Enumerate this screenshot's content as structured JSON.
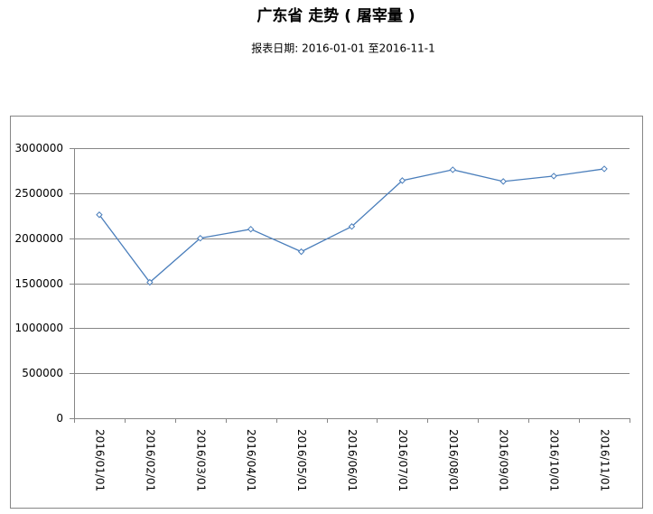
{
  "chart_data": {
    "type": "line",
    "title": "广东省 走势 ( 屠宰量 )",
    "subtitle": "报表日期: 2016-01-01 至2016-11-1",
    "categories": [
      "2016/01/01",
      "2016/02/01",
      "2016/03/01",
      "2016/04/01",
      "2016/05/01",
      "2016/06/01",
      "2016/07/01",
      "2016/08/01",
      "2016/09/01",
      "2016/10/01",
      "2016/11/01"
    ],
    "values": [
      2260000,
      1510000,
      2000000,
      2100000,
      1850000,
      2130000,
      2640000,
      2760000,
      2630000,
      2690000,
      2770000
    ],
    "color": "#4a7ebb",
    "ylim": [
      0,
      3000000
    ],
    "yticks": [
      0,
      500000,
      1000000,
      1500000,
      2000000,
      2500000,
      3000000
    ],
    "grid": true
  }
}
